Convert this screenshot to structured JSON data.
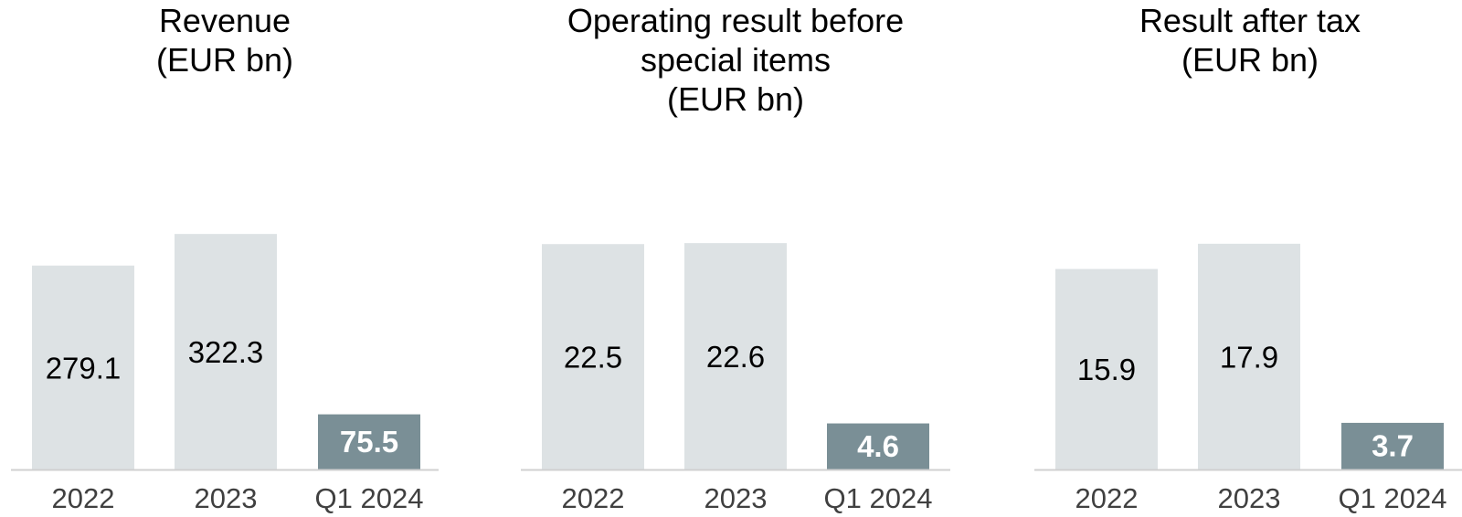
{
  "colors": {
    "past_bar": "#dde2e4",
    "current_bar": "#7a8f96",
    "axis": "#d0d0d0",
    "past_label": "#000000",
    "current_label": "#ffffff"
  },
  "chart_data": [
    {
      "type": "bar",
      "title": "Revenue\n(EUR bn)",
      "categories": [
        "2022",
        "2023",
        "Q1 2024"
      ],
      "values": [
        279.1,
        322.3,
        75.5
      ],
      "data_labels": [
        "279.1",
        "322.3",
        "75.5"
      ],
      "highlight": [
        false,
        false,
        true
      ],
      "ylim": [
        0,
        340
      ],
      "grid": false
    },
    {
      "type": "bar",
      "title": "Operating result before\nspecial items\n(EUR bn)",
      "categories": [
        "2022",
        "2023",
        "Q1 2024"
      ],
      "values": [
        22.5,
        22.6,
        4.6
      ],
      "data_labels": [
        "22.5",
        "22.6",
        "4.6"
      ],
      "highlight": [
        false,
        false,
        true
      ],
      "ylim": [
        0,
        24.8
      ],
      "grid": false
    },
    {
      "type": "bar",
      "title": "Result after tax\n(EUR bn)",
      "categories": [
        "2022",
        "2023",
        "Q1 2024"
      ],
      "values": [
        15.9,
        17.9,
        3.7
      ],
      "data_labels": [
        "15.9",
        "17.9",
        "3.7"
      ],
      "highlight": [
        false,
        false,
        true
      ],
      "ylim": [
        0,
        19.7
      ],
      "grid": false
    }
  ]
}
